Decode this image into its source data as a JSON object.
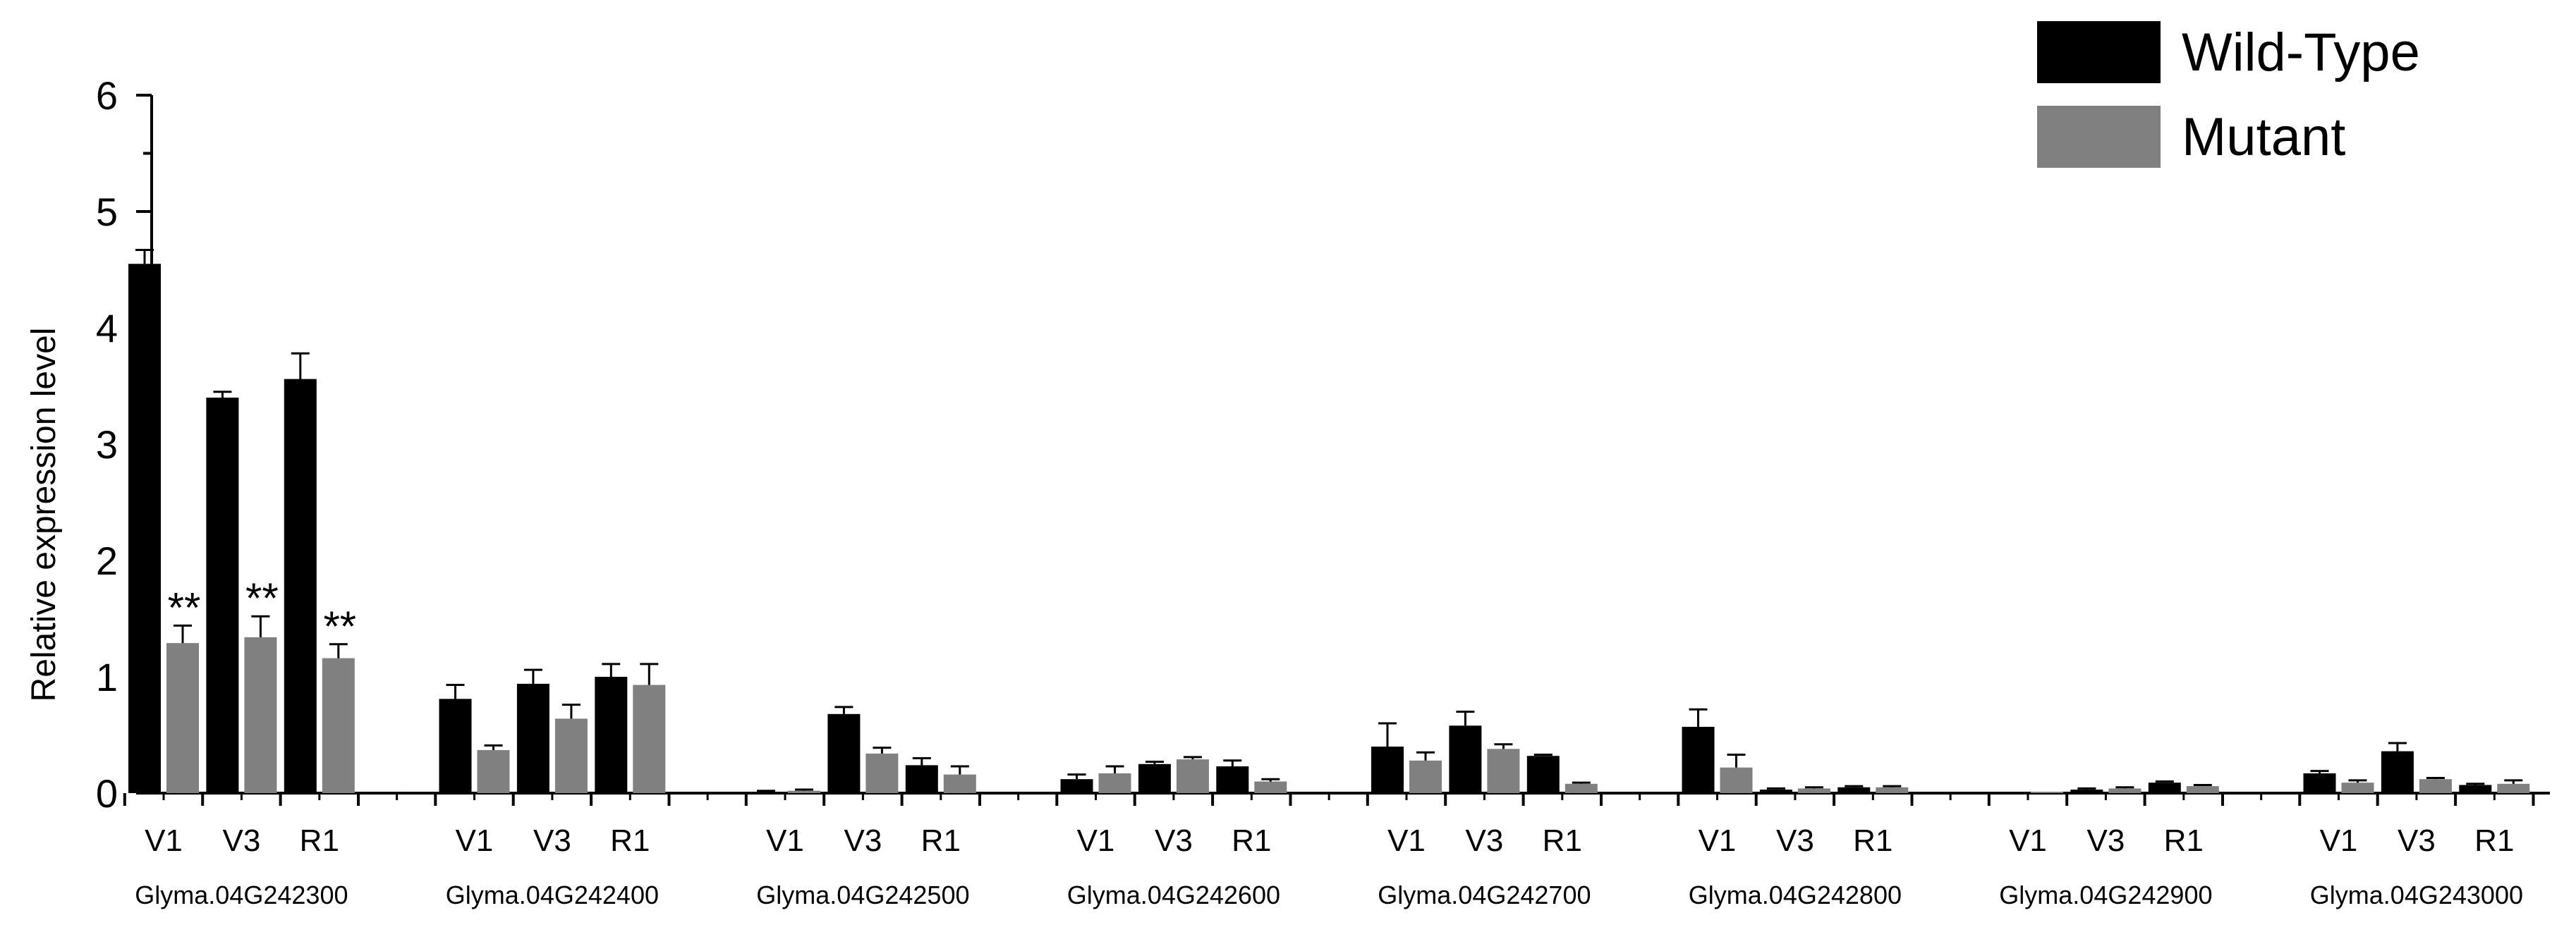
{
  "chart_data": {
    "type": "bar",
    "title": "",
    "xlabel": "",
    "ylabel": "Relative expression level",
    "ylim": [
      0,
      6
    ],
    "yticks": [
      0,
      1,
      2,
      3,
      4,
      5,
      6
    ],
    "grid": false,
    "legend_position": "top-right",
    "colors": {
      "Wild-Type": "#000000",
      "Mutant": "#808080"
    },
    "stages": [
      "V1",
      "V3",
      "R1"
    ],
    "groups": [
      "Glyma.04G242300",
      "Glyma.04G242400",
      "Glyma.04G242500",
      "Glyma.04G242600",
      "Glyma.04G242700",
      "Glyma.04G242800",
      "Glyma.04G242900",
      "Glyma.04G243000"
    ],
    "series": [
      {
        "name": "Wild-Type",
        "values": [
          [
            4.55,
            3.4,
            3.56
          ],
          [
            0.81,
            0.94,
            1.0
          ],
          [
            0.01,
            0.68,
            0.24
          ],
          [
            0.12,
            0.25,
            0.23
          ],
          [
            0.4,
            0.58,
            0.32
          ],
          [
            0.57,
            0.03,
            0.05
          ],
          [
            0.0,
            0.03,
            0.09
          ],
          [
            0.17,
            0.36,
            0.07
          ]
        ],
        "errors": [
          [
            0.12,
            0.05,
            0.22
          ],
          [
            0.12,
            0.12,
            0.11
          ],
          [
            0.01,
            0.06,
            0.06
          ],
          [
            0.04,
            0.02,
            0.05
          ],
          [
            0.2,
            0.12,
            0.01
          ],
          [
            0.15,
            0.01,
            0.01
          ],
          [
            0.0,
            0.01,
            0.01
          ],
          [
            0.02,
            0.07,
            0.01
          ]
        ]
      },
      {
        "name": "Mutant",
        "values": [
          [
            1.29,
            1.34,
            1.16
          ],
          [
            0.37,
            0.64,
            0.93
          ],
          [
            0.02,
            0.34,
            0.16
          ],
          [
            0.17,
            0.29,
            0.1
          ],
          [
            0.28,
            0.38,
            0.08
          ],
          [
            0.22,
            0.04,
            0.05
          ],
          [
            0.0,
            0.04,
            0.06
          ],
          [
            0.09,
            0.12,
            0.08
          ]
        ],
        "errors": [
          [
            0.15,
            0.18,
            0.12
          ],
          [
            0.04,
            0.12,
            0.18
          ],
          [
            0.01,
            0.05,
            0.07
          ],
          [
            0.06,
            0.02,
            0.02
          ],
          [
            0.07,
            0.04,
            0.01
          ],
          [
            0.11,
            0.01,
            0.01
          ],
          [
            0.0,
            0.01,
            0.01
          ],
          [
            0.02,
            0.01,
            0.03
          ]
        ]
      }
    ],
    "annotations": [
      {
        "group": 0,
        "stage": 0,
        "series": "Mutant",
        "text": "**"
      },
      {
        "group": 0,
        "stage": 1,
        "series": "Mutant",
        "text": "**"
      },
      {
        "group": 0,
        "stage": 2,
        "series": "Mutant",
        "text": "**"
      }
    ]
  }
}
